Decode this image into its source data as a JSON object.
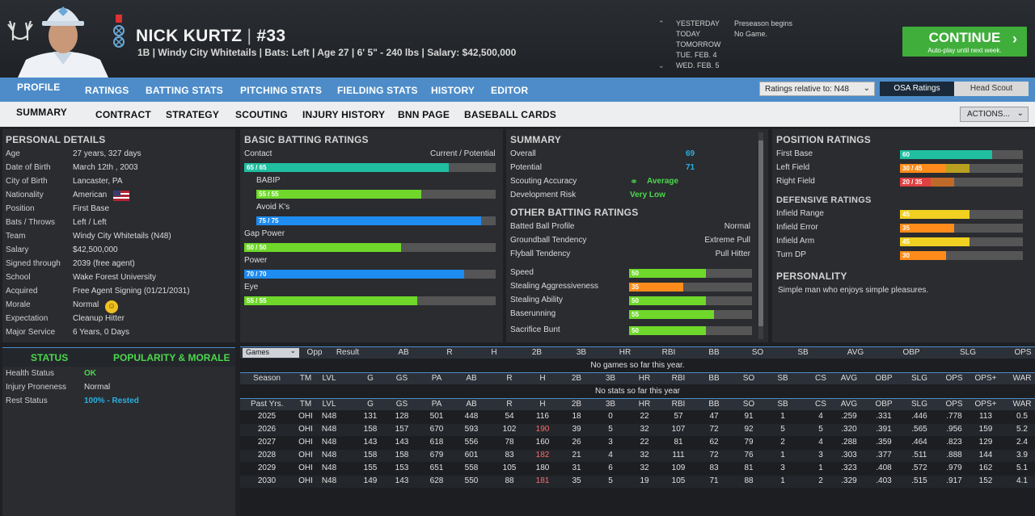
{
  "header": {
    "name": "NICK KURTZ",
    "sep": "|",
    "number": "#33",
    "info": "1B | Windy City Whitetails | Bats: Left | Age 27 | 6' 5\" - 240 lbs | Salary: $42,500,000"
  },
  "schedule": [
    {
      "day": "YESTERDAY",
      "event": "Preseason begins"
    },
    {
      "day": "TODAY",
      "event": "No Game."
    },
    {
      "day": "TOMORROW",
      "event": ""
    },
    {
      "day": "TUE. FEB. 4",
      "event": ""
    },
    {
      "day": "WED. FEB. 5",
      "event": ""
    }
  ],
  "continue": {
    "label": "CONTINUE",
    "sub": "Auto-play until next week."
  },
  "nav1": [
    "PROFILE",
    "RATINGS",
    "BATTING STATS",
    "PITCHING STATS",
    "FIELDING STATS",
    "HISTORY",
    "EDITOR"
  ],
  "nav2": [
    "SUMMARY",
    "CONTRACT",
    "STRATEGY",
    "SCOUTING",
    "INJURY HISTORY",
    "BNN PAGE",
    "BASEBALL CARDS"
  ],
  "ratings_relative": "Ratings relative to: N48",
  "osa": "OSA Ratings",
  "head_scout": "Head Scout",
  "actions": "ACTIONS...",
  "personal": {
    "title": "PERSONAL DETAILS",
    "rows": [
      [
        "Age",
        "27 years, 327 days"
      ],
      [
        "Date of Birth",
        "March 12th , 2003"
      ],
      [
        "City of Birth",
        "Lancaster, PA"
      ],
      [
        "Nationality",
        "American"
      ],
      [
        "Position",
        "First Base"
      ],
      [
        "Bats / Throws",
        "Left / Left"
      ],
      [
        "Team",
        "Windy City Whitetails (N48)"
      ],
      [
        "Salary",
        "$42,500,000"
      ],
      [
        "Signed through",
        "2039 (free agent)"
      ],
      [
        "School",
        "Wake Forest University"
      ],
      [
        "Acquired",
        "Free Agent Signing (01/21/2031)"
      ],
      [
        "Morale",
        "Normal"
      ],
      [
        "Expectation",
        "Cleanup Hitter"
      ],
      [
        "Major Service",
        "6 Years, 0 Days"
      ]
    ]
  },
  "status": {
    "tab1": "STATUS",
    "tab2": "POPULARITY & MORALE",
    "rows": [
      [
        "Health Status",
        "OK"
      ],
      [
        "Injury Proneness",
        "Normal"
      ],
      [
        "Rest Status",
        "100% - Rested"
      ]
    ]
  },
  "batting": {
    "title": "BASIC BATTING RATINGS",
    "right": "Current / Potential",
    "rows": [
      {
        "name": "Contact",
        "label": "65 / 65",
        "value": 65,
        "color": "#1fbfa0"
      },
      {
        "name": "BABIP",
        "label": "55 / 55",
        "value": 55,
        "color": "#6fd82a"
      },
      {
        "name": "Avoid K's",
        "label": "75 / 75",
        "value": 75,
        "color": "#1e8cf0"
      },
      {
        "name": "Gap Power",
        "label": "50 / 50",
        "value": 50,
        "color": "#6fd82a"
      },
      {
        "name": "Power",
        "label": "70 / 70",
        "value": 70,
        "color": "#1e8cf0"
      },
      {
        "name": "Eye",
        "label": "55 / 55",
        "value": 55,
        "color": "#6fd82a"
      }
    ]
  },
  "summary": {
    "title": "SUMMARY",
    "overall_label": "Overall",
    "overall": "69",
    "potential_label": "Potential",
    "potential": "71",
    "scout_label": "Scouting Accuracy",
    "scout": "Average",
    "dev_label": "Development Risk",
    "dev": "Very Low"
  },
  "other": {
    "title": "OTHER BATTING RATINGS",
    "text": [
      [
        "Batted Ball Profile",
        "Normal"
      ],
      [
        "Groundball Tendency",
        "Extreme Pull"
      ],
      [
        "Flyball Tendency",
        "Pull Hitter"
      ]
    ],
    "bars": [
      {
        "name": "Speed",
        "label": "50",
        "value": 50,
        "color": "#6fd82a"
      },
      {
        "name": "Stealing Aggressiveness",
        "label": "35",
        "value": 35,
        "color": "#ff8c1a"
      },
      {
        "name": "Stealing Ability",
        "label": "50",
        "value": 50,
        "color": "#6fd82a"
      },
      {
        "name": "Baserunning",
        "label": "55",
        "value": 55,
        "color": "#6fd82a"
      },
      {
        "name": "Sacrifice Bunt",
        "label": "50",
        "value": 50,
        "color": "#6fd82a"
      }
    ]
  },
  "position": {
    "title": "POSITION RATINGS",
    "rows": [
      {
        "name": "First Base",
        "label": "60",
        "value": 60,
        "pot": 60,
        "color": "#1fbfa0",
        "pcolor": "#1fbfa0"
      },
      {
        "name": "Left Field",
        "label": "30 / 45",
        "value": 30,
        "pot": 45,
        "color": "#ff8c1a",
        "pcolor": "#b8a020"
      },
      {
        "name": "Right Field",
        "label": "20 / 35",
        "value": 20,
        "pot": 35,
        "color": "#e04040",
        "pcolor": "#c06a2a"
      }
    ],
    "def_title": "DEFENSIVE RATINGS",
    "def": [
      {
        "name": "Infield Range",
        "label": "45",
        "value": 45,
        "color": "#f0d020"
      },
      {
        "name": "Infield Error",
        "label": "35",
        "value": 35,
        "color": "#ff8c1a"
      },
      {
        "name": "Infield Arm",
        "label": "45",
        "value": 45,
        "color": "#f0d020"
      },
      {
        "name": "Turn DP",
        "label": "30",
        "value": 30,
        "color": "#ff8c1a"
      }
    ],
    "pers_title": "PERSONALITY",
    "pers": "Simple man who enjoys simple pleasures."
  },
  "stats": {
    "games_sel": "Games",
    "game_cols": [
      "Opp",
      "Result",
      "AB",
      "R",
      "H",
      "2B",
      "3B",
      "HR",
      "RBI",
      "BB",
      "SO",
      "SB",
      "AVG",
      "OBP",
      "SLG",
      "OPS"
    ],
    "no_games": "No games so far this year.",
    "season_cols": [
      "Season",
      "TM",
      "LVL",
      "G",
      "GS",
      "PA",
      "AB",
      "R",
      "H",
      "2B",
      "3B",
      "HR",
      "RBI",
      "BB",
      "SO",
      "SB",
      "CS",
      "AVG",
      "OBP",
      "SLG",
      "OPS",
      "OPS+",
      "WAR"
    ],
    "no_stats": "No stats so far this year",
    "past_cols": [
      "Past Yrs.",
      "TM",
      "LVL",
      "G",
      "GS",
      "PA",
      "AB",
      "R",
      "H",
      "2B",
      "3B",
      "HR",
      "RBI",
      "BB",
      "SO",
      "SB",
      "CS",
      "AVG",
      "OBP",
      "SLG",
      "OPS",
      "OPS+",
      "WAR"
    ],
    "rows": [
      [
        "2025",
        "OHI",
        "N48",
        "131",
        "128",
        "501",
        "448",
        "54",
        "116",
        "18",
        "0",
        "22",
        "57",
        "47",
        "91",
        "1",
        "4",
        ".259",
        ".331",
        ".446",
        ".778",
        "113",
        "0.5"
      ],
      [
        "2026",
        "OHI",
        "N48",
        "158",
        "157",
        "670",
        "593",
        "102",
        "190",
        "39",
        "5",
        "32",
        "107",
        "72",
        "92",
        "5",
        "5",
        ".320",
        ".391",
        ".565",
        ".956",
        "159",
        "5.2"
      ],
      [
        "2027",
        "OHI",
        "N48",
        "143",
        "143",
        "618",
        "556",
        "78",
        "160",
        "26",
        "3",
        "22",
        "81",
        "62",
        "79",
        "2",
        "4",
        ".288",
        ".359",
        ".464",
        ".823",
        "129",
        "2.4"
      ],
      [
        "2028",
        "OHI",
        "N48",
        "158",
        "158",
        "679",
        "601",
        "83",
        "182",
        "21",
        "4",
        "32",
        "111",
        "72",
        "76",
        "1",
        "3",
        ".303",
        ".377",
        ".511",
        ".888",
        "144",
        "3.9"
      ],
      [
        "2029",
        "OHI",
        "N48",
        "155",
        "153",
        "651",
        "558",
        "105",
        "180",
        "31",
        "6",
        "32",
        "109",
        "83",
        "81",
        "3",
        "1",
        ".323",
        ".408",
        ".572",
        ".979",
        "162",
        "5.1"
      ],
      [
        "2030",
        "OHI",
        "N48",
        "149",
        "143",
        "628",
        "550",
        "88",
        "181",
        "35",
        "5",
        "19",
        "105",
        "71",
        "88",
        "1",
        "2",
        ".329",
        ".403",
        ".515",
        ".917",
        "152",
        "4.1"
      ]
    ],
    "hi_rows": [
      1,
      3,
      5
    ],
    "hi_color": "#ff6a6a"
  },
  "colors": {
    "accent": "#4d8cc9",
    "green": "#3fae3a"
  }
}
